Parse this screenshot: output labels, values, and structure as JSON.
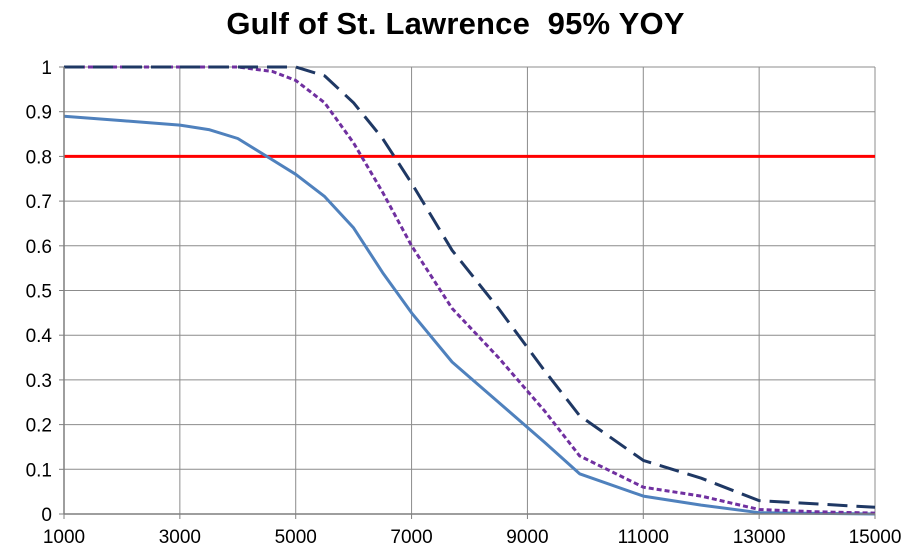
{
  "chart_data": {
    "type": "line",
    "title": "Gulf of St. Lawrence  95% YOY",
    "xlabel": "",
    "ylabel": "",
    "xlim": [
      1000,
      15000
    ],
    "ylim": [
      0,
      1
    ],
    "grid": true,
    "legend": "none",
    "x_ticks": [
      "1000",
      "3000",
      "5000",
      "7000",
      "9000",
      "11000",
      "13000",
      "15000"
    ],
    "y_ticks": [
      "0",
      "0.1",
      "0.2",
      "0.3",
      "0.4",
      "0.5",
      "0.6",
      "0.7",
      "0.8",
      "0.9",
      "1"
    ],
    "x_gridlines": [
      1000,
      3000,
      5000,
      7000,
      9000,
      11000,
      13000,
      15000
    ],
    "y_gridlines": [
      0,
      0.1,
      0.2,
      0.3,
      0.4,
      0.5,
      0.6,
      0.7,
      0.8,
      0.9,
      1
    ],
    "reference_line": {
      "y": 0.8,
      "color": "#ff0000"
    },
    "series": [
      {
        "color": "#4f81bd",
        "style": "solid",
        "points": [
          [
            1000,
            0.89
          ],
          [
            2000,
            0.88
          ],
          [
            3000,
            0.87
          ],
          [
            3500,
            0.86
          ],
          [
            4000,
            0.84
          ],
          [
            4500,
            0.8
          ],
          [
            5000,
            0.76
          ],
          [
            5500,
            0.71
          ],
          [
            6000,
            0.64
          ],
          [
            6500,
            0.54
          ],
          [
            7000,
            0.45
          ],
          [
            7700,
            0.34
          ],
          [
            8500,
            0.25
          ],
          [
            9300,
            0.16
          ],
          [
            9900,
            0.09
          ],
          [
            11000,
            0.04
          ],
          [
            12000,
            0.02
          ],
          [
            13000,
            0.003
          ],
          [
            15000,
            0.0
          ]
        ]
      },
      {
        "color": "#7030a0",
        "style": "dotted",
        "points": [
          [
            1000,
            1.0
          ],
          [
            2000,
            1.0
          ],
          [
            3000,
            1.0
          ],
          [
            4000,
            1.0
          ],
          [
            4600,
            0.99
          ],
          [
            5000,
            0.97
          ],
          [
            5500,
            0.92
          ],
          [
            6000,
            0.83
          ],
          [
            6500,
            0.72
          ],
          [
            7000,
            0.6
          ],
          [
            7700,
            0.46
          ],
          [
            8500,
            0.35
          ],
          [
            9300,
            0.23
          ],
          [
            9900,
            0.13
          ],
          [
            11000,
            0.06
          ],
          [
            12000,
            0.04
          ],
          [
            13000,
            0.01
          ],
          [
            14000,
            0.005
          ],
          [
            15000,
            0.002
          ]
        ]
      },
      {
        "color": "#1f3864",
        "style": "dashed",
        "points": [
          [
            1000,
            1.0
          ],
          [
            2000,
            1.0
          ],
          [
            3000,
            1.0
          ],
          [
            4000,
            1.0
          ],
          [
            5000,
            1.0
          ],
          [
            5500,
            0.98
          ],
          [
            6000,
            0.92
          ],
          [
            6500,
            0.84
          ],
          [
            7000,
            0.74
          ],
          [
            7700,
            0.59
          ],
          [
            8500,
            0.46
          ],
          [
            9300,
            0.32
          ],
          [
            9900,
            0.22
          ],
          [
            11000,
            0.12
          ],
          [
            12000,
            0.08
          ],
          [
            13000,
            0.03
          ],
          [
            15000,
            0.015
          ]
        ]
      }
    ]
  }
}
